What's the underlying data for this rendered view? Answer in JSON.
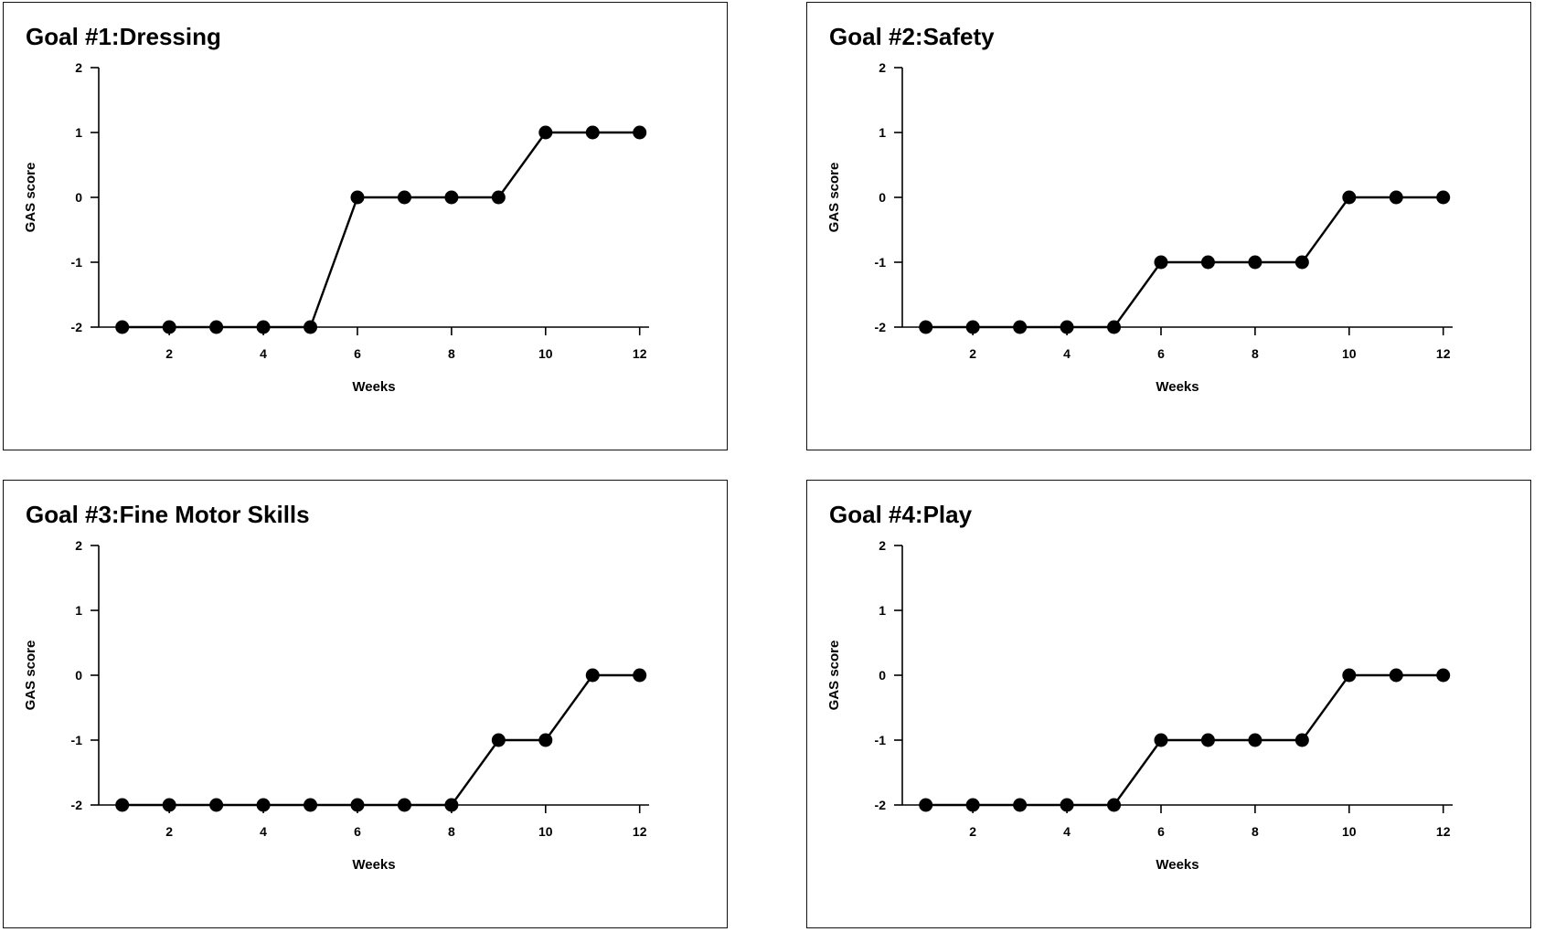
{
  "chart_data": [
    {
      "type": "line",
      "title": "Goal #1:Dressing",
      "xlabel": "Weeks",
      "ylabel": "GAS score",
      "xlim": [
        0.5,
        12.2
      ],
      "ylim": [
        -2,
        2
      ],
      "x_ticks": [
        "2",
        "4",
        "6",
        "8",
        "10",
        "12"
      ],
      "y_ticks": [
        "2",
        "1",
        "0",
        "-1",
        "-2"
      ],
      "x": [
        1,
        2,
        3,
        4,
        5,
        6,
        7,
        8,
        9,
        10,
        11,
        12
      ],
      "values": [
        -2,
        -2,
        -2,
        -2,
        -2,
        0,
        0,
        0,
        0,
        1,
        1,
        1
      ]
    },
    {
      "type": "line",
      "title": "Goal #2:Safety",
      "xlabel": "Weeks",
      "ylabel": "GAS score",
      "xlim": [
        0.5,
        12.2
      ],
      "ylim": [
        -2,
        2
      ],
      "x_ticks": [
        "2",
        "4",
        "6",
        "8",
        "10",
        "12"
      ],
      "y_ticks": [
        "2",
        "1",
        "0",
        "-1",
        "-2"
      ],
      "x": [
        1,
        2,
        3,
        4,
        5,
        6,
        7,
        8,
        9,
        10,
        11,
        12
      ],
      "values": [
        -2,
        -2,
        -2,
        -2,
        -2,
        -1,
        -1,
        -1,
        -1,
        0,
        0,
        0
      ]
    },
    {
      "type": "line",
      "title": "Goal #3:Fine Motor Skills",
      "xlabel": "Weeks",
      "ylabel": "GAS score",
      "xlim": [
        0.5,
        12.2
      ],
      "ylim": [
        -2,
        2
      ],
      "x_ticks": [
        "2",
        "4",
        "6",
        "8",
        "10",
        "12"
      ],
      "y_ticks": [
        "2",
        "1",
        "0",
        "-1",
        "-2"
      ],
      "x": [
        1,
        2,
        3,
        4,
        5,
        6,
        7,
        8,
        9,
        10,
        11,
        12
      ],
      "values": [
        -2,
        -2,
        -2,
        -2,
        -2,
        -2,
        -2,
        -2,
        -1,
        -1,
        0,
        0
      ]
    },
    {
      "type": "line",
      "title": "Goal #4:Play",
      "xlabel": "Weeks",
      "ylabel": "GAS score",
      "xlim": [
        0.5,
        12.2
      ],
      "ylim": [
        -2,
        2
      ],
      "x_ticks": [
        "2",
        "4",
        "6",
        "8",
        "10",
        "12"
      ],
      "y_ticks": [
        "2",
        "1",
        "0",
        "-1",
        "-2"
      ],
      "x": [
        1,
        2,
        3,
        4,
        5,
        6,
        7,
        8,
        9,
        10,
        11,
        12
      ],
      "values": [
        -2,
        -2,
        -2,
        -2,
        -2,
        -1,
        -1,
        -1,
        -1,
        0,
        0,
        0
      ]
    }
  ]
}
